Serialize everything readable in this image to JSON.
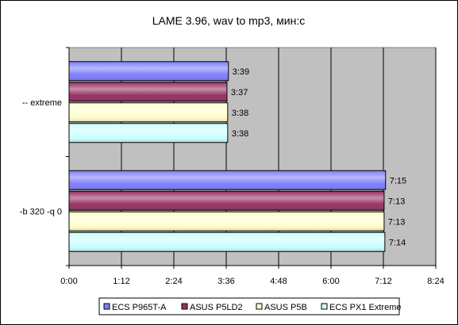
{
  "chart_data": {
    "type": "bar",
    "orientation": "horizontal",
    "title": "LAME 3.96, wav to mp3, мин:с",
    "xlabel": "",
    "ylabel": "",
    "categories": [
      "-- extreme",
      "-b 320 -q 0"
    ],
    "x_unit": "seconds",
    "xlim": [
      0,
      504
    ],
    "x_ticks": [
      0,
      72,
      144,
      216,
      288,
      360,
      432,
      504
    ],
    "x_tick_labels": [
      "0:00",
      "1:12",
      "2:24",
      "3:36",
      "4:48",
      "6:00",
      "7:12",
      "8:24"
    ],
    "grid": true,
    "legend_position": "bottom",
    "plot_background": "#c0c0c0",
    "series": [
      {
        "name": "ECS P965T-A",
        "color": "#8080ff",
        "values": [
          219,
          435
        ],
        "labels": [
          "3:39",
          "7:15"
        ]
      },
      {
        "name": "ASUS P5LD2",
        "color": "#993366",
        "values": [
          217,
          433
        ],
        "labels": [
          "3:37",
          "7:13"
        ]
      },
      {
        "name": "ASUS P5B",
        "color": "#ffffcc",
        "values": [
          218,
          433
        ],
        "labels": [
          "3:38",
          "7:13"
        ]
      },
      {
        "name": "ECS PX1 Extreme",
        "color": "#ccffff",
        "values": [
          218,
          434
        ],
        "labels": [
          "3:38",
          "7:14"
        ]
      }
    ]
  }
}
